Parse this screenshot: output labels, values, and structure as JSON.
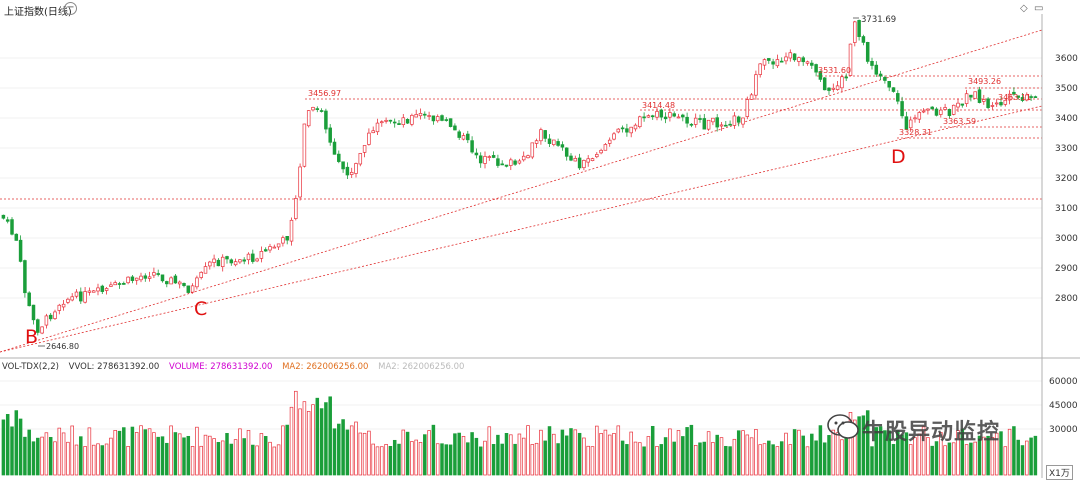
{
  "window": {
    "title": "上证指数(日线)"
  },
  "colors": {
    "up": "#e8303a",
    "down": "#1a9e3a",
    "grid": "#e6e6e6",
    "dashed": "#e03030",
    "axis_text": "#333333"
  },
  "price_axis": {
    "ticks": [
      "3600",
      "3500",
      "3400",
      "3300",
      "3200",
      "3100",
      "3000",
      "2900",
      "2800"
    ]
  },
  "volume_axis": {
    "ticks": [
      "60000",
      "45000",
      "30000"
    ],
    "unit": "X1万"
  },
  "volume_header": {
    "indicator": "VOL-TDX(2,2)",
    "vvol": "VVOL: 278631392.00",
    "volume": "VOLUME: 278631392.00",
    "ma2": "MA2: 262006256.00",
    "ma2_faded": "MA2: 262006256.00"
  },
  "price_labels": {
    "low": "2646.80",
    "high_c": "3456.97",
    "mid": "3414.48",
    "peak": "3731.69",
    "level": "3531.60",
    "right_high": "3493.26",
    "right_mid": "3463.11",
    "right_low": "3363.59",
    "d_low": "3328.31"
  },
  "annotations": {
    "b": "B",
    "c": "C",
    "d": "D"
  },
  "watermark": {
    "text": "牛股异动监控"
  }
}
